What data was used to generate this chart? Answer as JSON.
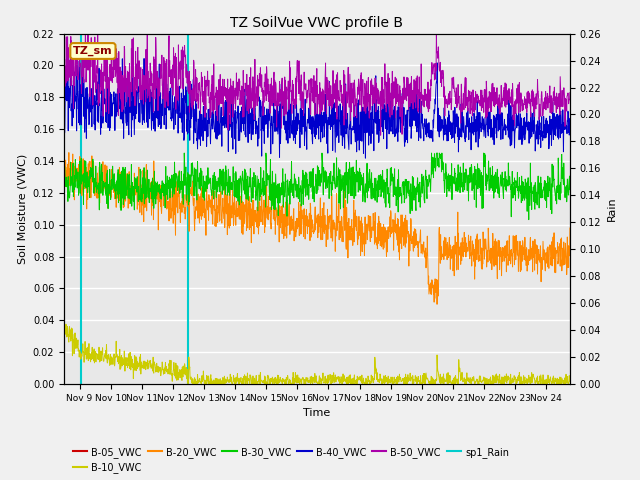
{
  "title": "TZ SoilVue VWC profile B",
  "xlabel": "Time",
  "ylabel_left": "Soil Moisture (VWC)",
  "ylabel_right": "Rain",
  "ylim_left": [
    0.0,
    0.22
  ],
  "ylim_right": [
    0.0,
    0.26
  ],
  "annotation_box_label": "TZ_sm",
  "series_colors": {
    "B05": "#cc0000",
    "B10": "#cccc00",
    "B20": "#ff8800",
    "B30": "#00cc00",
    "B40": "#0000cc",
    "B50": "#aa00aa",
    "Rain": "#00cccc"
  },
  "legend_entries": [
    "B-05_VWC",
    "B-10_VWC",
    "B-20_VWC",
    "B-30_VWC",
    "B-40_VWC",
    "B-50_VWC",
    "sp1_Rain"
  ],
  "bg_color": "#e8e8e8",
  "fig_bg_color": "#f0f0f0"
}
